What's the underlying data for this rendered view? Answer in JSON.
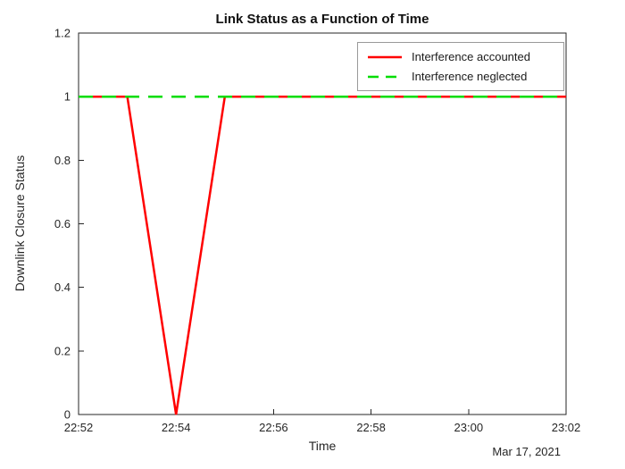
{
  "chart_data": {
    "type": "line",
    "title": "Link Status as a Function of Time",
    "xlabel": "Time",
    "x_date_label": "Mar 17, 2021",
    "ylabel": "Downlink Closure Status",
    "xlim": [
      0,
      10
    ],
    "ylim": [
      0,
      1.2
    ],
    "x_unit": "minutes after 22:52",
    "x_tick_values": [
      0,
      2,
      4,
      6,
      8,
      10
    ],
    "x_ticks": [
      "22:52",
      "22:54",
      "22:56",
      "22:58",
      "23:00",
      "23:02"
    ],
    "y_tick_values": [
      0,
      0.2,
      0.4,
      0.6,
      0.8,
      1,
      1.2
    ],
    "y_ticks": [
      "0",
      "0.2",
      "0.4",
      "0.6",
      "0.8",
      "1",
      "1.2"
    ],
    "grid": false,
    "legend_position": "top-right",
    "axis_color": "#262626",
    "text_color": "#262626",
    "series": [
      {
        "name": "Interference accounted",
        "color": "#ff0000",
        "style": "solid",
        "line_width": 2.5,
        "x": [
          0,
          1,
          2,
          3,
          4,
          5,
          6,
          7,
          8,
          9,
          10
        ],
        "x_times": [
          "22:52",
          "22:53",
          "22:54",
          "22:55",
          "22:56",
          "22:57",
          "22:58",
          "22:59",
          "23:00",
          "23:01",
          "23:02"
        ],
        "values": [
          1,
          1,
          0,
          1,
          1,
          1,
          1,
          1,
          1,
          1,
          1
        ]
      },
      {
        "name": "Interference neglected",
        "color": "#00dd00",
        "style": "dashed",
        "line_width": 2.5,
        "x": [
          0,
          1,
          2,
          3,
          4,
          5,
          6,
          7,
          8,
          9,
          10
        ],
        "x_times": [
          "22:52",
          "22:53",
          "22:54",
          "22:55",
          "22:56",
          "22:57",
          "22:58",
          "22:59",
          "23:00",
          "23:01",
          "23:02"
        ],
        "values": [
          1,
          1,
          1,
          1,
          1,
          1,
          1,
          1,
          1,
          1,
          1
        ]
      }
    ]
  }
}
